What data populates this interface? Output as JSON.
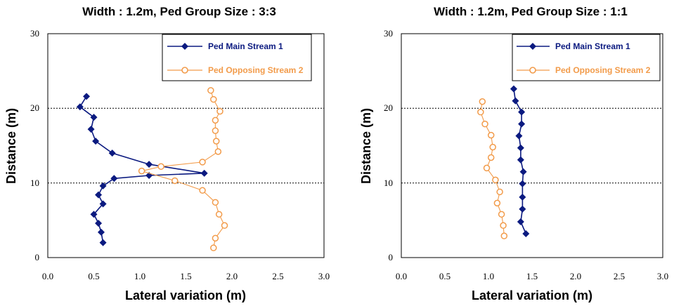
{
  "colors": {
    "main": "#0b1a80",
    "opposing": "#f29b4a"
  },
  "chart_data": [
    {
      "type": "line",
      "title": "Width : 1.2m, Ped Group Size : 3:3",
      "xlabel": "Lateral variation (m)",
      "ylabel": "Distance (m)",
      "xlim": [
        0,
        3
      ],
      "ylim": [
        0,
        30
      ],
      "xticks": [
        "0.0",
        "0.5",
        "1.0",
        "1.5",
        "2.0",
        "2.5",
        "3.0"
      ],
      "yticks": [
        "0",
        "10",
        "20",
        "30"
      ],
      "grid": "horizontal dashed at 10 and 20",
      "legend_position": "top-right",
      "series": [
        {
          "name": "Ped Main Stream 1",
          "marker": "diamond",
          "points": [
            [
              0.42,
              21.6
            ],
            [
              0.35,
              20.2
            ],
            [
              0.5,
              18.8
            ],
            [
              0.47,
              17.2
            ],
            [
              0.52,
              15.6
            ],
            [
              0.7,
              14.0
            ],
            [
              1.1,
              12.5
            ],
            [
              1.7,
              11.3
            ],
            [
              1.1,
              11.0
            ],
            [
              0.72,
              10.6
            ],
            [
              0.6,
              9.6
            ],
            [
              0.55,
              8.4
            ],
            [
              0.6,
              7.2
            ],
            [
              0.5,
              5.8
            ],
            [
              0.55,
              4.6
            ],
            [
              0.58,
              3.4
            ],
            [
              0.6,
              2.0
            ]
          ]
        },
        {
          "name": "Ped Opposing Stream 2",
          "marker": "circle",
          "points": [
            [
              1.77,
              22.4
            ],
            [
              1.8,
              21.2
            ],
            [
              1.87,
              19.6
            ],
            [
              1.82,
              18.4
            ],
            [
              1.82,
              17.0
            ],
            [
              1.83,
              15.6
            ],
            [
              1.85,
              14.2
            ],
            [
              1.68,
              12.8
            ],
            [
              1.23,
              12.2
            ],
            [
              1.02,
              11.6
            ],
            [
              1.38,
              10.3
            ],
            [
              1.68,
              9.0
            ],
            [
              1.82,
              7.4
            ],
            [
              1.86,
              5.8
            ],
            [
              1.92,
              4.3
            ],
            [
              1.82,
              2.6
            ],
            [
              1.8,
              1.3
            ]
          ]
        }
      ]
    },
    {
      "type": "line",
      "title": "Width : 1.2m, Ped Group Size : 1:1",
      "xlabel": "Lateral variation (m)",
      "ylabel": "Distance (m)",
      "xlim": [
        0,
        3
      ],
      "ylim": [
        0,
        30
      ],
      "xticks": [
        "0.0",
        "0.5",
        "1.0",
        "1.5",
        "2.0",
        "2.5",
        "3.0"
      ],
      "yticks": [
        "0",
        "10",
        "20",
        "30"
      ],
      "grid": "horizontal dashed at 10 and 20",
      "legend_position": "top-right",
      "series": [
        {
          "name": "Ped Main Stream 1",
          "marker": "diamond",
          "points": [
            [
              1.29,
              22.6
            ],
            [
              1.31,
              21.0
            ],
            [
              1.38,
              19.5
            ],
            [
              1.38,
              17.9
            ],
            [
              1.35,
              16.3
            ],
            [
              1.37,
              14.7
            ],
            [
              1.37,
              13.1
            ],
            [
              1.4,
              11.5
            ],
            [
              1.39,
              9.9
            ],
            [
              1.39,
              8.1
            ],
            [
              1.39,
              6.5
            ],
            [
              1.37,
              4.8
            ],
            [
              1.43,
              3.2
            ]
          ]
        },
        {
          "name": "Ped Opposing Stream 2",
          "marker": "circle",
          "points": [
            [
              0.93,
              20.9
            ],
            [
              0.91,
              19.5
            ],
            [
              0.96,
              17.9
            ],
            [
              1.03,
              16.4
            ],
            [
              1.05,
              14.8
            ],
            [
              1.03,
              13.4
            ],
            [
              0.98,
              12.0
            ],
            [
              1.08,
              10.4
            ],
            [
              1.13,
              8.8
            ],
            [
              1.1,
              7.3
            ],
            [
              1.15,
              5.8
            ],
            [
              1.17,
              4.3
            ],
            [
              1.18,
              2.9
            ]
          ]
        }
      ]
    }
  ]
}
